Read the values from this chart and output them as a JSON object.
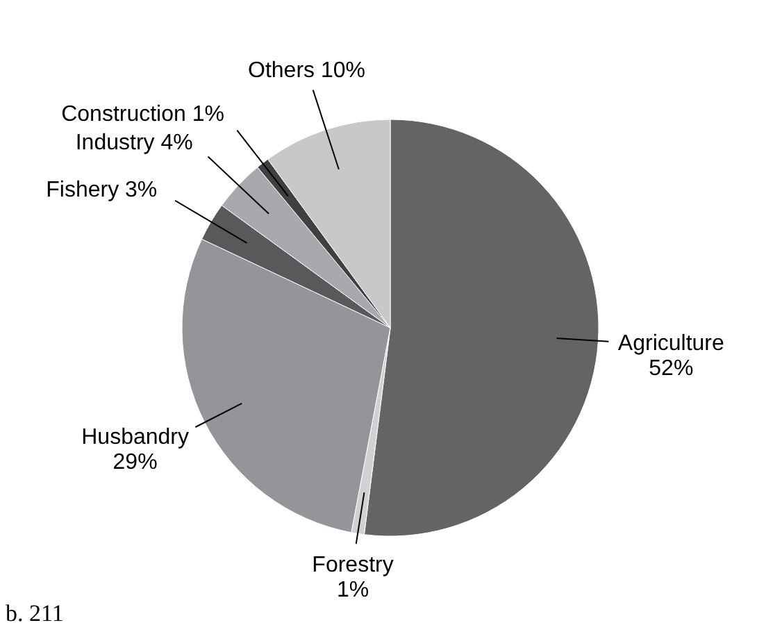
{
  "chart_data": {
    "type": "pie",
    "categories": [
      "Agriculture",
      "Forestry",
      "Husbandry",
      "Fishery",
      "Industry",
      "Construction",
      "Others"
    ],
    "values": [
      52,
      1,
      29,
      3,
      4,
      1,
      10
    ],
    "colors": [
      "#636466",
      "#d0d1d3",
      "#939598",
      "#58595b",
      "#a7a9ac",
      "#404041",
      "#c7c8ca"
    ],
    "value_labels": [
      "52%",
      "1%",
      "29%",
      "3%",
      "4%",
      "1%",
      "10%"
    ],
    "annotations": [
      "b. 211"
    ]
  }
}
